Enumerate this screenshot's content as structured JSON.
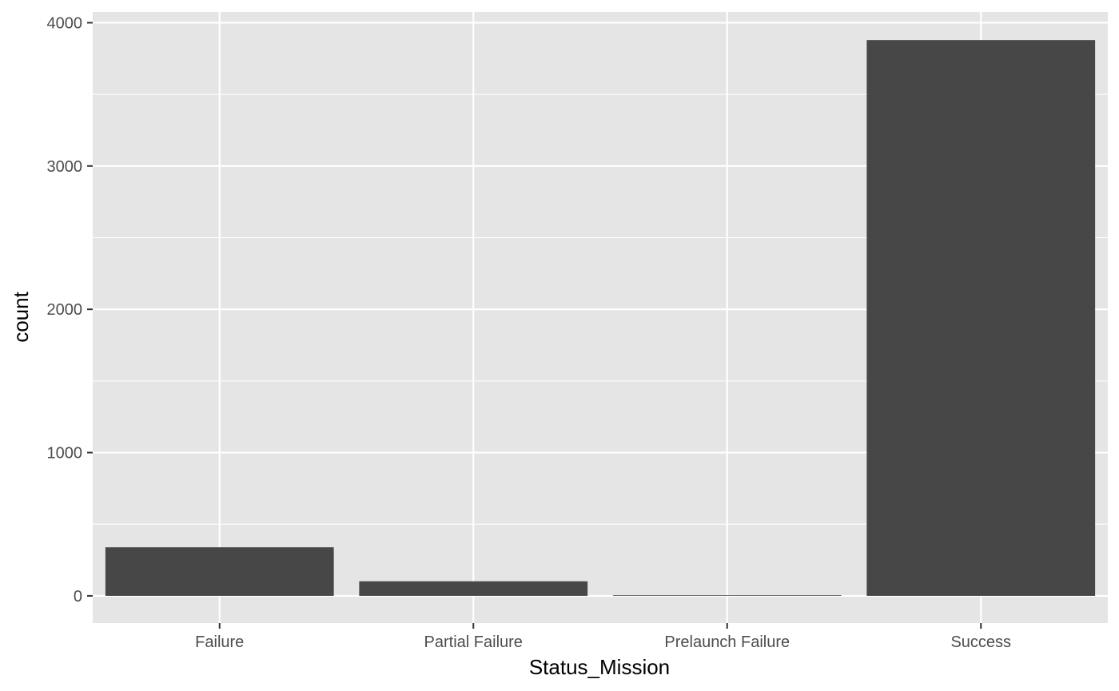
{
  "chart_data": {
    "type": "bar",
    "categories": [
      "Failure",
      "Partial Failure",
      "Prelaunch Failure",
      "Success"
    ],
    "values": [
      339,
      102,
      4,
      3879
    ],
    "xlabel": "Status_Mission",
    "ylabel": "count",
    "ylim": [
      -190,
      4075
    ],
    "yticks": [
      0,
      1000,
      2000,
      3000,
      4000
    ],
    "ytick_labels": [
      "0",
      "1000",
      "2000",
      "3000",
      "4000"
    ],
    "grid": true,
    "colors": {
      "panel_background": "#e5e5e5",
      "grid_line": "#ffffff",
      "bar_fill": "#474747",
      "tick_text": "#4d4d4d",
      "axis_title_text": "#000000"
    }
  }
}
